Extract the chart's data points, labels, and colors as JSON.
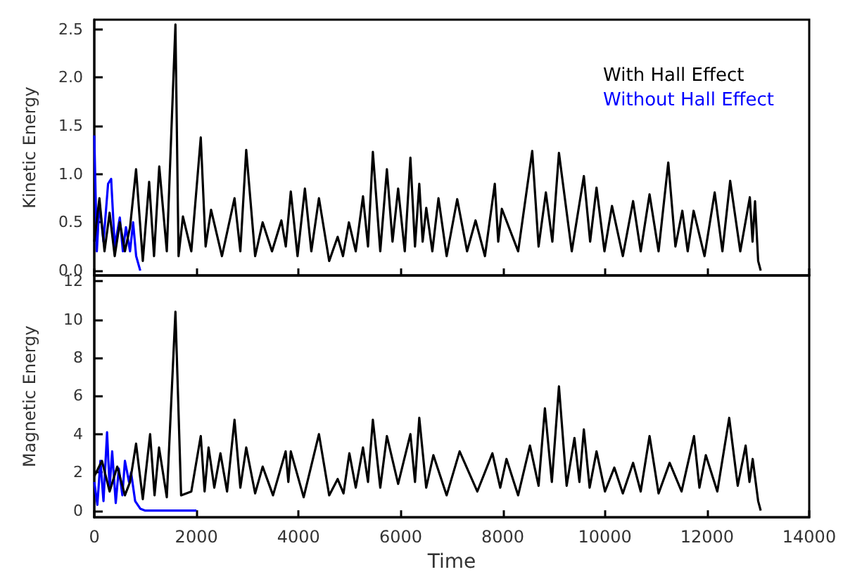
{
  "chart_data": [
    {
      "type": "line",
      "ylabel": "Kinetic Energy",
      "xlim": [
        0,
        14000
      ],
      "xticks": [
        0,
        2000,
        4000,
        6000,
        8000,
        10000,
        12000,
        14000
      ],
      "ylim": [
        -0.05,
        2.6
      ],
      "yticks": [
        {
          "value": 0,
          "label": "0.0"
        },
        {
          "value": 0.5,
          "label": "0.5"
        },
        {
          "value": 1,
          "label": "1.0"
        },
        {
          "value": 1.5,
          "label": "1.5"
        },
        {
          "value": 2,
          "label": "2.0"
        },
        {
          "value": 2.5,
          "label": "2.5"
        }
      ],
      "tick_labels": "y",
      "legend": "top right",
      "grid": false,
      "marker": "none",
      "line_style": "solid",
      "series": [
        {
          "name": "With Hall Effect",
          "color": "#000000",
          "x": [
            0,
            100,
            200,
            300,
            400,
            500,
            600,
            700,
            818,
            950,
            1074,
            1170,
            1272,
            1420,
            1589,
            1650,
            1736,
            1900,
            2085,
            2180,
            2287,
            2500,
            2746,
            2860,
            2975,
            3150,
            3297,
            3480,
            3664,
            3750,
            3848,
            3980,
            4124,
            4250,
            4399,
            4600,
            4766,
            4870,
            4986,
            5120,
            5262,
            5360,
            5455,
            5600,
            5730,
            5840,
            5950,
            6080,
            6190,
            6280,
            6364,
            6430,
            6501,
            6620,
            6740,
            6900,
            7107,
            7300,
            7466,
            7650,
            7843,
            7910,
            7981,
            8300,
            8576,
            8700,
            8843,
            8970,
            9099,
            9350,
            9587,
            9710,
            9835,
            9990,
            10138,
            10350,
            10551,
            10700,
            10873,
            11050,
            11240,
            11380,
            11515,
            11620,
            11736,
            11950,
            12149,
            12300,
            12452,
            12650,
            12837,
            12890,
            12939,
            13000,
            13050
          ],
          "values": [
            0.3,
            0.75,
            0.2,
            0.6,
            0.15,
            0.5,
            0.2,
            0.45,
            1.05,
            0.1,
            0.92,
            0.15,
            1.08,
            0.2,
            2.55,
            0.15,
            0.56,
            0.2,
            1.38,
            0.25,
            0.63,
            0.15,
            0.75,
            0.2,
            1.25,
            0.15,
            0.5,
            0.2,
            0.52,
            0.25,
            0.82,
            0.15,
            0.85,
            0.2,
            0.75,
            0.1,
            0.35,
            0.15,
            0.5,
            0.2,
            0.77,
            0.25,
            1.23,
            0.2,
            1.05,
            0.3,
            0.85,
            0.2,
            1.17,
            0.25,
            0.9,
            0.3,
            0.65,
            0.2,
            0.75,
            0.15,
            0.74,
            0.2,
            0.52,
            0.15,
            0.9,
            0.3,
            0.64,
            0.2,
            1.24,
            0.25,
            0.81,
            0.3,
            1.22,
            0.2,
            0.98,
            0.3,
            0.86,
            0.2,
            0.67,
            0.15,
            0.72,
            0.2,
            0.79,
            0.2,
            1.12,
            0.25,
            0.62,
            0.2,
            0.62,
            0.15,
            0.81,
            0.2,
            0.93,
            0.2,
            0.76,
            0.3,
            0.72,
            0.1,
            0
          ]
        },
        {
          "name": "Without Hall Effect",
          "color": "#0000ff",
          "x": [
            0,
            50,
            100,
            180,
            270,
            330,
            400,
            500,
            560,
            620,
            700,
            760,
            820,
            900
          ],
          "values": [
            1.4,
            0.2,
            0.7,
            0.3,
            0.9,
            0.95,
            0.25,
            0.55,
            0.2,
            0.45,
            0.2,
            0.5,
            0.15,
            0
          ]
        }
      ]
    },
    {
      "type": "line",
      "xlabel": "Time",
      "ylabel": "Magnetic Energy",
      "xlim": [
        0,
        14000
      ],
      "xticks": [
        0,
        2000,
        4000,
        6000,
        8000,
        10000,
        12000,
        14000
      ],
      "ylim": [
        -0.35,
        12.3
      ],
      "yticks": [
        0,
        2,
        4,
        6,
        8,
        10,
        12
      ],
      "grid": false,
      "marker": "none",
      "line_style": "solid",
      "series": [
        {
          "color": "#000000",
          "x": [
            0,
            150,
            300,
            450,
            600,
            700,
            818,
            950,
            1093,
            1180,
            1268,
            1420,
            1589,
            1700,
            1900,
            2085,
            2160,
            2238,
            2350,
            2470,
            2600,
            2746,
            2860,
            2975,
            3150,
            3297,
            3500,
            3747,
            3800,
            3848,
            4100,
            4399,
            4600,
            4766,
            4880,
            4995,
            5120,
            5262,
            5360,
            5455,
            5600,
            5730,
            5950,
            6190,
            6280,
            6364,
            6500,
            6640,
            6900,
            7154,
            7500,
            7796,
            7950,
            8072,
            8300,
            8531,
            8700,
            8824,
            8960,
            9099,
            9250,
            9403,
            9500,
            9587,
            9700,
            9835,
            10000,
            10184,
            10350,
            10551,
            10700,
            10873,
            11050,
            11267,
            11500,
            11744,
            11850,
            11975,
            12200,
            12433,
            12600,
            12755,
            12830,
            12893,
            13000,
            13050
          ],
          "values": [
            1.8,
            2.6,
            1.0,
            2.3,
            0.8,
            1.5,
            3.5,
            0.6,
            4.0,
            0.8,
            3.3,
            0.7,
            10.4,
            0.8,
            1.0,
            3.9,
            1.0,
            3.3,
            1.2,
            3.0,
            1.0,
            4.75,
            1.2,
            3.3,
            0.9,
            2.3,
            0.8,
            3.1,
            1.5,
            3.1,
            0.7,
            4.0,
            0.8,
            1.65,
            0.9,
            3.0,
            1.2,
            3.3,
            1.5,
            4.75,
            1.2,
            3.9,
            1.4,
            4.0,
            1.5,
            4.85,
            1.2,
            2.9,
            0.8,
            3.1,
            1.0,
            3.0,
            1.2,
            2.7,
            0.8,
            3.4,
            1.3,
            5.35,
            1.5,
            6.5,
            1.3,
            3.8,
            1.5,
            4.25,
            1.2,
            3.1,
            1.0,
            2.25,
            0.9,
            2.5,
            1.0,
            3.9,
            0.9,
            2.5,
            1.0,
            3.9,
            1.2,
            2.9,
            1.0,
            4.85,
            1.3,
            3.4,
            1.5,
            2.7,
            0.5,
            0
          ]
        },
        {
          "color": "#0000ff",
          "x": [
            0,
            60,
            120,
            180,
            250,
            300,
            350,
            420,
            480,
            550,
            600,
            680,
            720,
            800,
            900,
            1000,
            2000
          ],
          "values": [
            1.5,
            0.3,
            2.6,
            0.5,
            4.1,
            1.2,
            3.1,
            0.4,
            2.2,
            0.8,
            2.6,
            1.5,
            2.0,
            0.5,
            0.1,
            0,
            0
          ]
        }
      ]
    }
  ]
}
